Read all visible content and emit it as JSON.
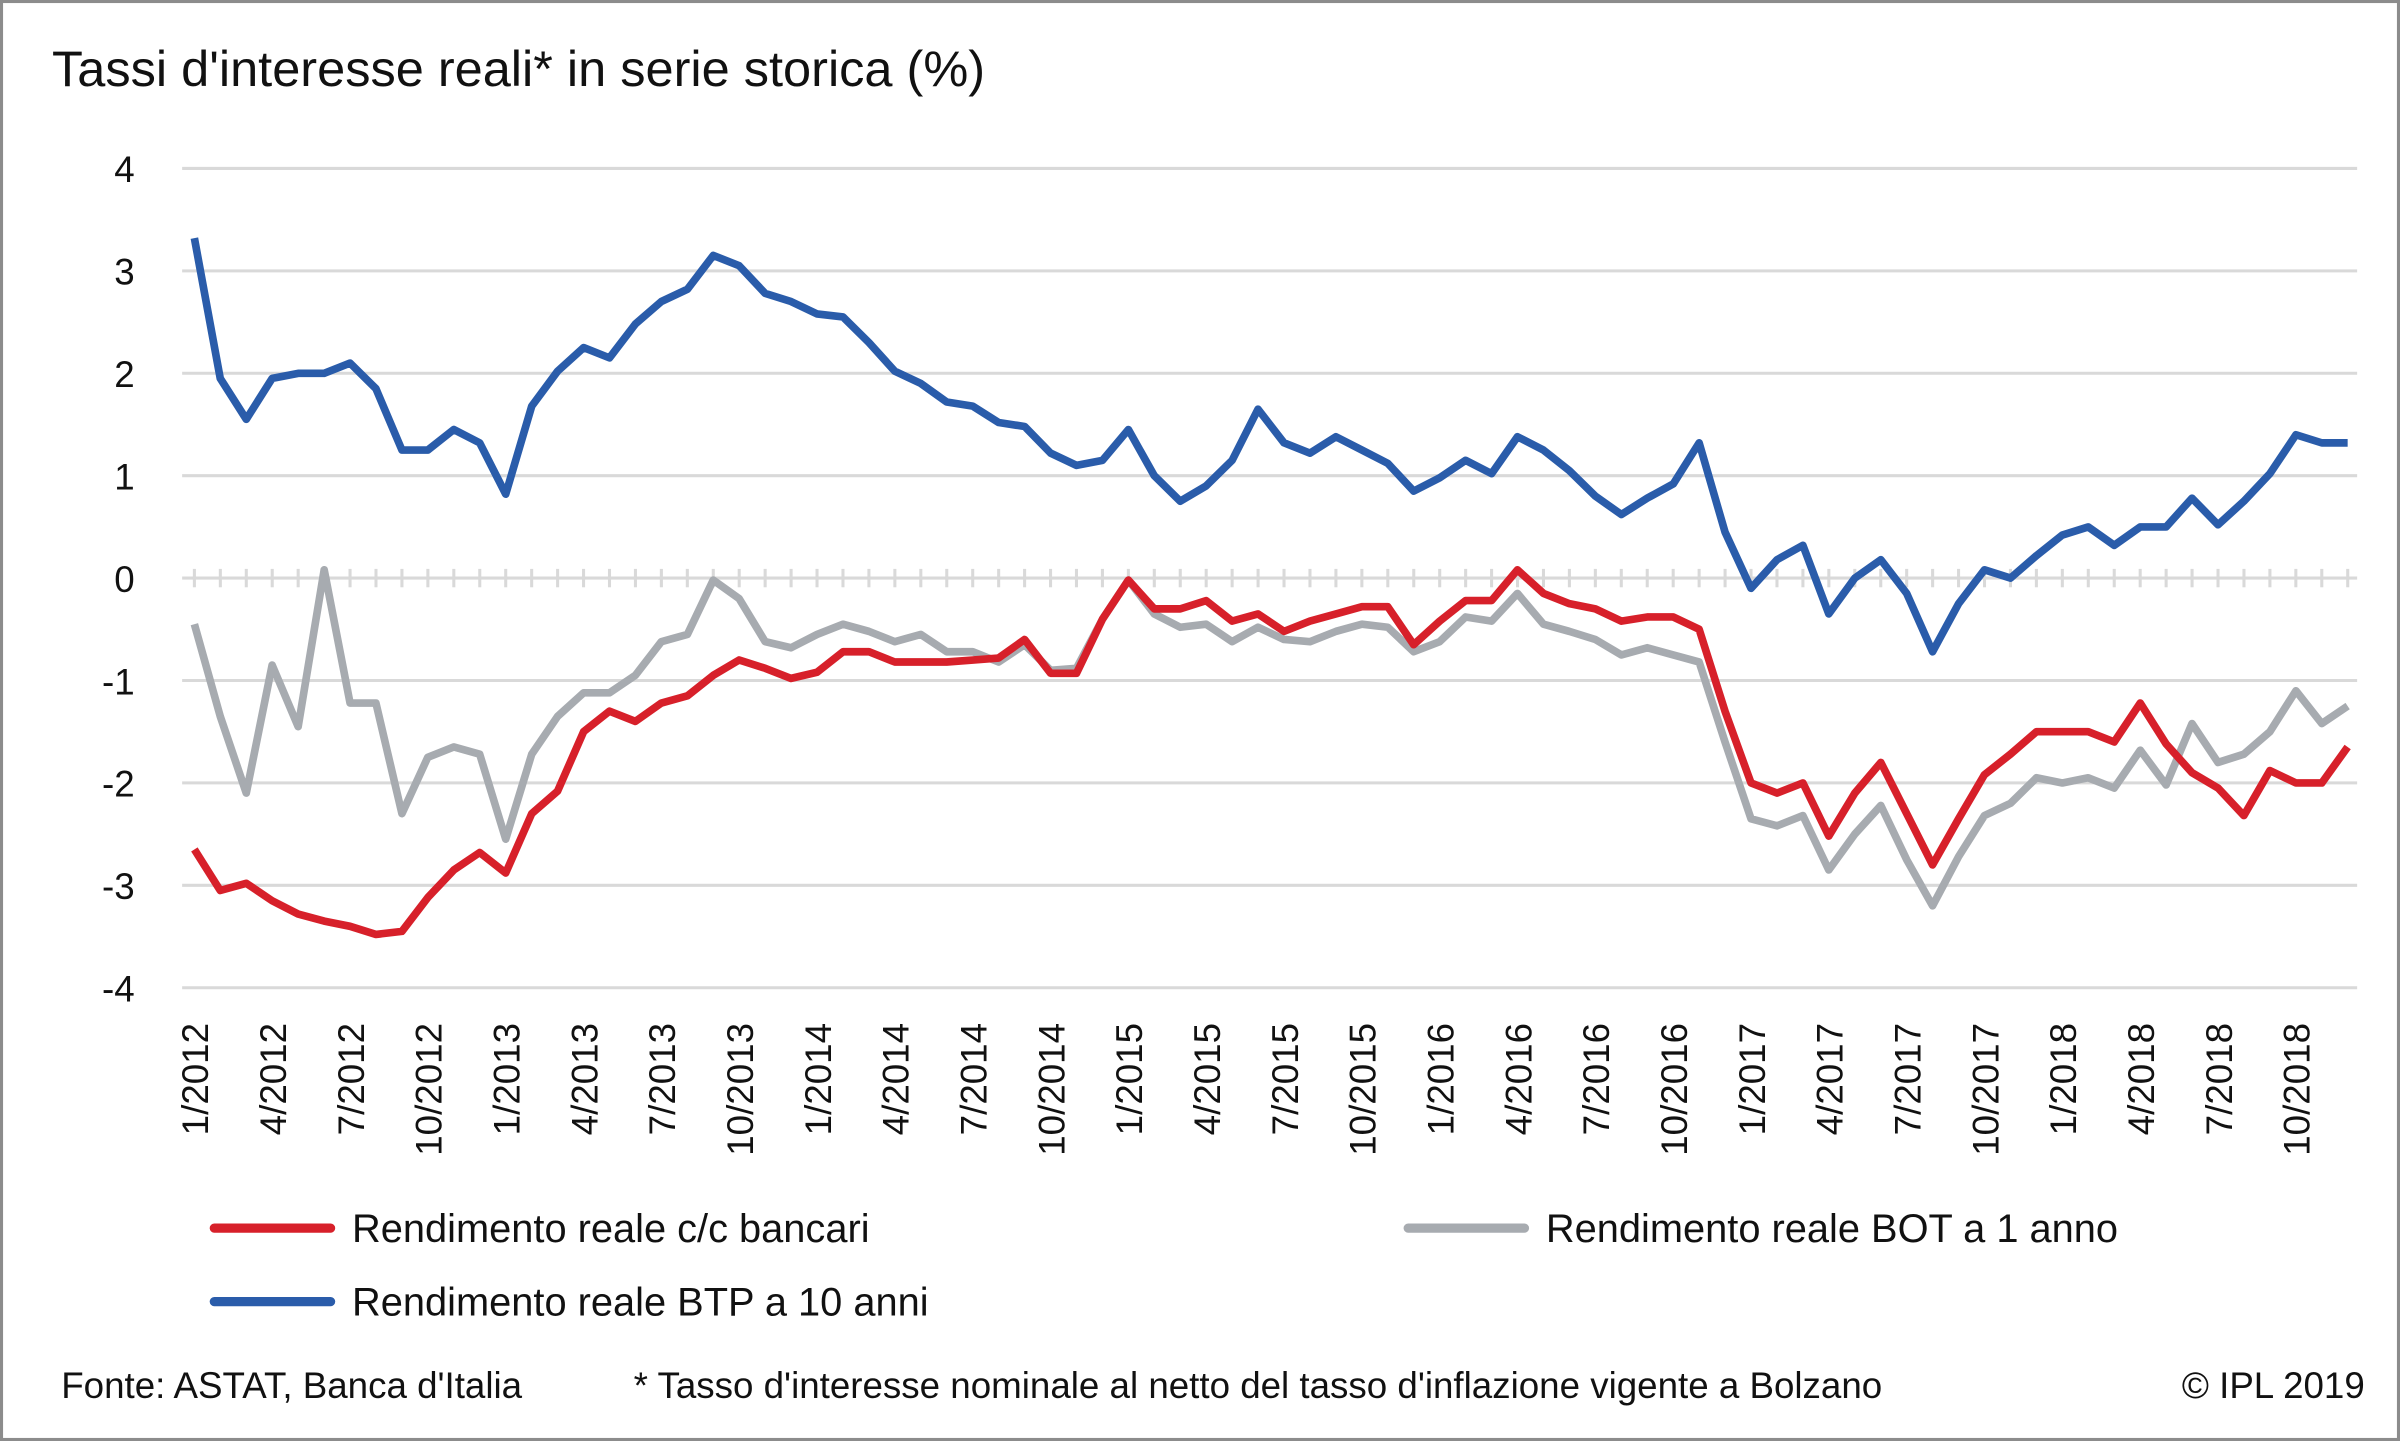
{
  "chart_data": {
    "type": "line",
    "title": "Tassi d'interesse reali* in serie storica (%)",
    "categories": [
      "1/2012",
      null,
      null,
      "4/2012",
      null,
      null,
      "7/2012",
      null,
      null,
      "10/2012",
      null,
      null,
      "1/2013",
      null,
      null,
      "4/2013",
      null,
      null,
      "7/2013",
      null,
      null,
      "10/2013",
      null,
      null,
      "1/2014",
      null,
      null,
      "4/2014",
      null,
      null,
      "7/2014",
      null,
      null,
      "10/2014",
      null,
      null,
      "1/2015",
      null,
      null,
      "4/2015",
      null,
      null,
      "7/2015",
      null,
      null,
      "10/2015",
      null,
      null,
      "1/2016",
      null,
      null,
      "4/2016",
      null,
      null,
      "7/2016",
      null,
      null,
      "10/2016",
      null,
      null,
      "1/2017",
      null,
      null,
      "4/2017",
      null,
      null,
      "7/2017",
      null,
      null,
      "10/2017",
      null,
      null,
      "1/2018",
      null,
      null,
      "4/2018",
      null,
      null,
      "7/2018",
      null,
      null,
      "10/2018",
      null,
      null
    ],
    "series": [
      {
        "name": "Rendimento reale c/c bancari",
        "color": "#d7202a",
        "values": [
          -2.65,
          -3.05,
          -2.98,
          -3.15,
          -3.28,
          -3.35,
          -3.4,
          -3.48,
          -3.45,
          -3.12,
          -2.85,
          -2.68,
          -2.88,
          -2.3,
          -2.08,
          -1.5,
          -1.3,
          -1.4,
          -1.22,
          -1.15,
          -0.95,
          -0.8,
          -0.88,
          -0.98,
          -0.92,
          -0.72,
          -0.72,
          -0.82,
          -0.82,
          -0.82,
          -0.8,
          -0.78,
          -0.6,
          -0.93,
          -0.93,
          -0.4,
          -0.02,
          -0.3,
          -0.3,
          -0.22,
          -0.42,
          -0.35,
          -0.52,
          -0.42,
          -0.35,
          -0.28,
          -0.28,
          -0.65,
          -0.42,
          -0.22,
          -0.22,
          0.08,
          -0.15,
          -0.25,
          -0.3,
          -0.42,
          -0.38,
          -0.38,
          -0.5,
          -1.3,
          -2.0,
          -2.1,
          -2.0,
          -2.52,
          -2.1,
          -1.8,
          -2.3,
          -2.8,
          -2.35,
          -1.92,
          -1.72,
          -1.5,
          -1.5,
          -1.5,
          -1.6,
          -1.22,
          -1.62,
          -1.9,
          -2.05,
          -2.32,
          -1.88,
          -2.0,
          -2.0,
          -1.65
        ]
      },
      {
        "name": "Rendimento reale BOT a 1 anno",
        "color": "#a7abb0",
        "values": [
          -0.45,
          -1.35,
          -2.1,
          -0.85,
          -1.45,
          0.08,
          -1.22,
          -1.22,
          -2.3,
          -1.75,
          -1.65,
          -1.72,
          -2.55,
          -1.72,
          -1.35,
          -1.12,
          -1.12,
          -0.95,
          -0.62,
          -0.55,
          -0.02,
          -0.2,
          -0.62,
          -0.68,
          -0.55,
          -0.45,
          -0.52,
          -0.62,
          -0.55,
          -0.72,
          -0.72,
          -0.82,
          -0.65,
          -0.9,
          -0.88,
          -0.4,
          -0.02,
          -0.35,
          -0.48,
          -0.45,
          -0.62,
          -0.48,
          -0.6,
          -0.62,
          -0.52,
          -0.45,
          -0.48,
          -0.72,
          -0.62,
          -0.38,
          -0.42,
          -0.15,
          -0.45,
          -0.52,
          -0.6,
          -0.75,
          -0.68,
          -0.75,
          -0.82,
          -1.6,
          -2.35,
          -2.42,
          -2.32,
          -2.85,
          -2.5,
          -2.22,
          -2.75,
          -3.2,
          -2.72,
          -2.32,
          -2.2,
          -1.95,
          -2.0,
          -1.95,
          -2.05,
          -1.68,
          -2.02,
          -1.42,
          -1.8,
          -1.72,
          -1.5,
          -1.1,
          -1.42,
          -1.25
        ]
      },
      {
        "name": "Rendimento reale BTP a 10 anni",
        "color": "#2a5caa",
        "values": [
          3.32,
          1.95,
          1.55,
          1.95,
          2.0,
          2.0,
          2.1,
          1.85,
          1.25,
          1.25,
          1.45,
          1.32,
          0.82,
          1.68,
          2.02,
          2.25,
          2.15,
          2.48,
          2.7,
          2.82,
          3.15,
          3.05,
          2.78,
          2.7,
          2.58,
          2.55,
          2.3,
          2.02,
          1.9,
          1.72,
          1.68,
          1.52,
          1.48,
          1.22,
          1.1,
          1.15,
          1.45,
          1.0,
          0.75,
          0.9,
          1.15,
          1.65,
          1.32,
          1.22,
          1.38,
          1.25,
          1.12,
          0.85,
          0.98,
          1.15,
          1.02,
          1.38,
          1.25,
          1.05,
          0.8,
          0.62,
          0.78,
          0.92,
          1.32,
          0.45,
          -0.1,
          0.18,
          0.32,
          -0.35,
          0.0,
          0.18,
          -0.15,
          -0.72,
          -0.25,
          0.08,
          0.0,
          0.22,
          0.42,
          0.5,
          0.32,
          0.5,
          0.5,
          0.78,
          0.52,
          0.75,
          1.02,
          1.4,
          1.32,
          1.32
        ]
      }
    ],
    "ylim": [
      -4,
      4
    ],
    "yticks": [
      -4,
      -3,
      -2,
      -1,
      0,
      1,
      2,
      3,
      4
    ],
    "grid": true,
    "source": "Fonte: ASTAT, Banca d'Italia",
    "note": "* Tasso d'interesse nominale al netto del tasso d'inflazione vigente a Bolzano",
    "copyright": "© IPL 2019"
  }
}
